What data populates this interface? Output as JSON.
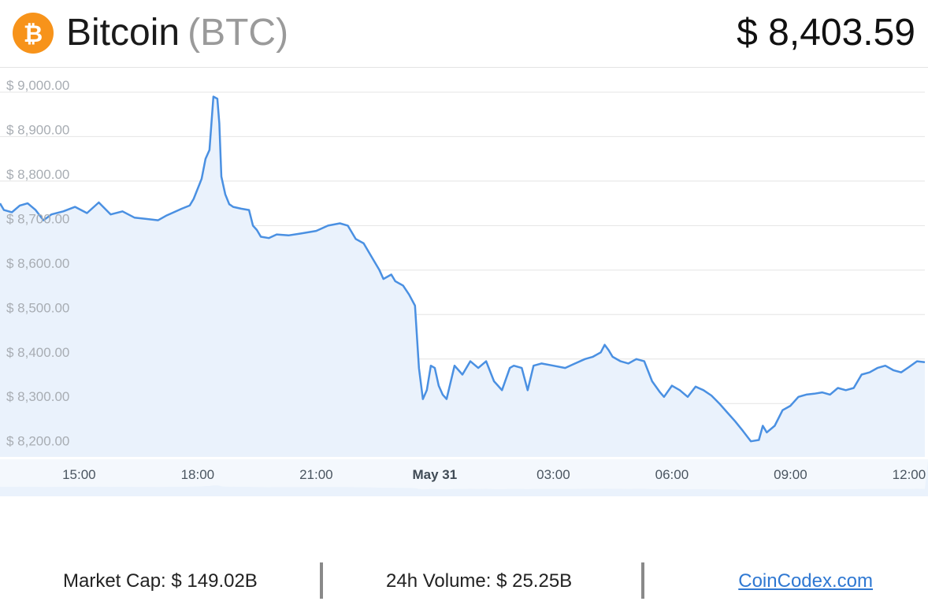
{
  "header": {
    "coin_name": "Bitcoin",
    "coin_symbol": "(BTC)",
    "price": "$ 8,403.59",
    "logo_icon": "bitcoin-icon",
    "logo_color": "#f7931a"
  },
  "footer": {
    "market_cap": "Market Cap: $ 149.02B",
    "volume": "24h Volume: $ 25.25B",
    "site_link": "CoinCodex.com"
  },
  "chart_data": {
    "type": "area",
    "title": "",
    "xlabel": "",
    "ylabel": "",
    "line_color": "#4a90e2",
    "fill_color": "#eaf2fc",
    "grid": true,
    "x_range_hours": [
      13.0,
      36.4
    ],
    "ylim": [
      8180,
      9030
    ],
    "y_ticks": [
      {
        "value": 9000,
        "label": "$ 9,000.00"
      },
      {
        "value": 8900,
        "label": "$ 8,900.00"
      },
      {
        "value": 8800,
        "label": "$ 8,800.00"
      },
      {
        "value": 8700,
        "label": "$ 8,700.00"
      },
      {
        "value": 8600,
        "label": "$ 8,600.00"
      },
      {
        "value": 8500,
        "label": "$ 8,500.00"
      },
      {
        "value": 8400,
        "label": "$ 8,400.00"
      },
      {
        "value": 8300,
        "label": "$ 8,300.00"
      },
      {
        "value": 8200,
        "label": "$ 8,200.00"
      }
    ],
    "x_ticks": [
      {
        "hour": 15,
        "label": "15:00",
        "bold": false
      },
      {
        "hour": 18,
        "label": "18:00",
        "bold": false
      },
      {
        "hour": 21,
        "label": "21:00",
        "bold": false
      },
      {
        "hour": 24,
        "label": "May 31",
        "bold": true
      },
      {
        "hour": 27,
        "label": "03:00",
        "bold": false
      },
      {
        "hour": 30,
        "label": "06:00",
        "bold": false
      },
      {
        "hour": 33,
        "label": "09:00",
        "bold": false
      },
      {
        "hour": 36,
        "label": "12:00",
        "bold": false
      }
    ],
    "series": [
      {
        "points": [
          [
            13.0,
            8750
          ],
          [
            13.1,
            8735
          ],
          [
            13.3,
            8730
          ],
          [
            13.5,
            8745
          ],
          [
            13.7,
            8750
          ],
          [
            13.9,
            8735
          ],
          [
            14.1,
            8712
          ],
          [
            14.3,
            8725
          ],
          [
            14.6,
            8732
          ],
          [
            14.9,
            8742
          ],
          [
            15.2,
            8728
          ],
          [
            15.5,
            8752
          ],
          [
            15.8,
            8725
          ],
          [
            16.1,
            8732
          ],
          [
            16.4,
            8718
          ],
          [
            16.7,
            8715
          ],
          [
            17.0,
            8712
          ],
          [
            17.2,
            8722
          ],
          [
            17.4,
            8730
          ],
          [
            17.6,
            8738
          ],
          [
            17.8,
            8745
          ],
          [
            17.9,
            8760
          ],
          [
            18.1,
            8805
          ],
          [
            18.2,
            8850
          ],
          [
            18.3,
            8870
          ],
          [
            18.4,
            8990
          ],
          [
            18.5,
            8985
          ],
          [
            18.55,
            8930
          ],
          [
            18.6,
            8810
          ],
          [
            18.7,
            8770
          ],
          [
            18.8,
            8748
          ],
          [
            18.9,
            8742
          ],
          [
            19.1,
            8738
          ],
          [
            19.3,
            8735
          ],
          [
            19.4,
            8700
          ],
          [
            19.5,
            8690
          ],
          [
            19.6,
            8675
          ],
          [
            19.8,
            8672
          ],
          [
            20.0,
            8680
          ],
          [
            20.3,
            8678
          ],
          [
            20.6,
            8682
          ],
          [
            21.0,
            8688
          ],
          [
            21.3,
            8700
          ],
          [
            21.6,
            8705
          ],
          [
            21.8,
            8700
          ],
          [
            22.0,
            8670
          ],
          [
            22.2,
            8660
          ],
          [
            22.4,
            8630
          ],
          [
            22.6,
            8600
          ],
          [
            22.7,
            8580
          ],
          [
            22.9,
            8590
          ],
          [
            23.0,
            8575
          ],
          [
            23.2,
            8565
          ],
          [
            23.35,
            8545
          ],
          [
            23.5,
            8520
          ],
          [
            23.6,
            8380
          ],
          [
            23.7,
            8310
          ],
          [
            23.8,
            8330
          ],
          [
            23.9,
            8385
          ],
          [
            24.0,
            8380
          ],
          [
            24.1,
            8340
          ],
          [
            24.2,
            8320
          ],
          [
            24.3,
            8310
          ],
          [
            24.5,
            8385
          ],
          [
            24.7,
            8365
          ],
          [
            24.9,
            8395
          ],
          [
            25.1,
            8380
          ],
          [
            25.3,
            8395
          ],
          [
            25.5,
            8350
          ],
          [
            25.6,
            8340
          ],
          [
            25.7,
            8330
          ],
          [
            25.9,
            8380
          ],
          [
            26.0,
            8385
          ],
          [
            26.2,
            8380
          ],
          [
            26.35,
            8330
          ],
          [
            26.5,
            8385
          ],
          [
            26.7,
            8390
          ],
          [
            27.0,
            8385
          ],
          [
            27.3,
            8380
          ],
          [
            27.5,
            8388
          ],
          [
            27.8,
            8400
          ],
          [
            28.0,
            8405
          ],
          [
            28.2,
            8415
          ],
          [
            28.3,
            8432
          ],
          [
            28.4,
            8420
          ],
          [
            28.5,
            8405
          ],
          [
            28.7,
            8395
          ],
          [
            28.9,
            8390
          ],
          [
            29.1,
            8400
          ],
          [
            29.3,
            8395
          ],
          [
            29.5,
            8350
          ],
          [
            29.7,
            8325
          ],
          [
            29.8,
            8315
          ],
          [
            30.0,
            8340
          ],
          [
            30.2,
            8330
          ],
          [
            30.4,
            8315
          ],
          [
            30.6,
            8338
          ],
          [
            30.8,
            8330
          ],
          [
            31.0,
            8318
          ],
          [
            31.2,
            8300
          ],
          [
            31.4,
            8280
          ],
          [
            31.6,
            8260
          ],
          [
            31.8,
            8238
          ],
          [
            32.0,
            8215
          ],
          [
            32.2,
            8218
          ],
          [
            32.3,
            8250
          ],
          [
            32.4,
            8235
          ],
          [
            32.6,
            8250
          ],
          [
            32.8,
            8285
          ],
          [
            33.0,
            8295
          ],
          [
            33.2,
            8315
          ],
          [
            33.4,
            8320
          ],
          [
            33.6,
            8322
          ],
          [
            33.8,
            8325
          ],
          [
            34.0,
            8320
          ],
          [
            34.2,
            8335
          ],
          [
            34.4,
            8330
          ],
          [
            34.6,
            8335
          ],
          [
            34.8,
            8365
          ],
          [
            35.0,
            8370
          ],
          [
            35.2,
            8380
          ],
          [
            35.4,
            8385
          ],
          [
            35.6,
            8375
          ],
          [
            35.8,
            8370
          ],
          [
            36.0,
            8382
          ],
          [
            36.2,
            8395
          ],
          [
            36.4,
            8393
          ]
        ]
      }
    ],
    "navigator": {
      "present": true,
      "fill_color": "#eaf2fc"
    }
  }
}
